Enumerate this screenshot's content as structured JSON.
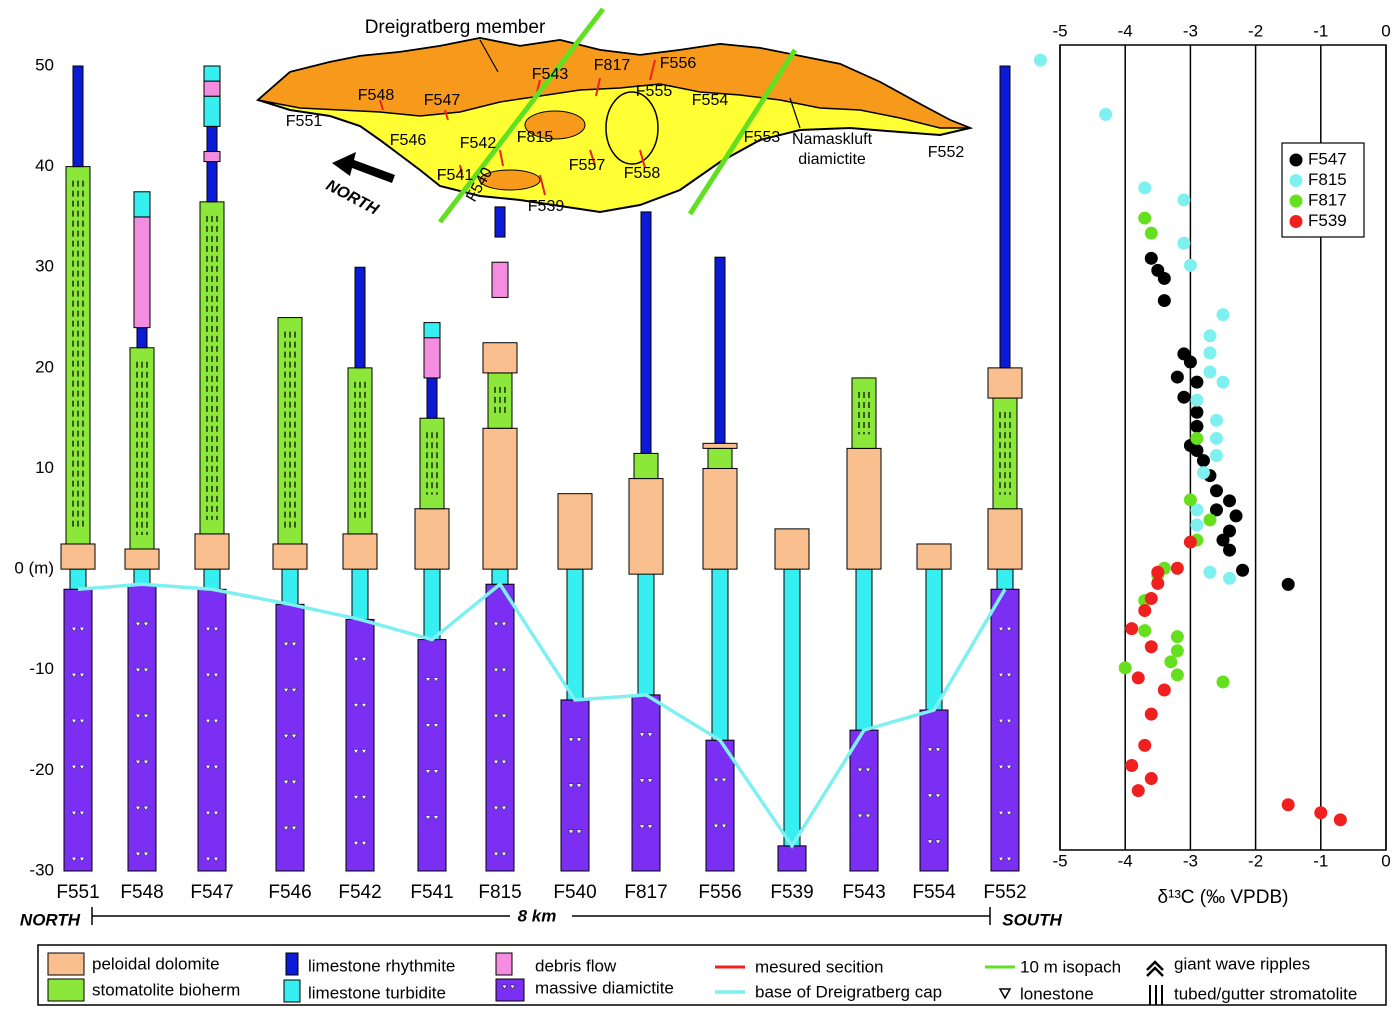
{
  "chart_data": [
    {
      "type": "strat-columns",
      "ylim": [
        -30,
        50
      ],
      "yticks": [
        -30,
        -20,
        -10,
        {
          "value": 0,
          "label": "0 (m)"
        },
        10,
        20,
        30,
        40,
        50
      ],
      "lithologies": [
        {
          "name": "peloidal dolomite",
          "color": "#f9bf8e"
        },
        {
          "name": "stomatolite bioherm",
          "color": "#8be83a"
        },
        {
          "name": "limestone rhythmite",
          "color": "#0b1ad6"
        },
        {
          "name": "limestone turbidite",
          "color": "#37eef0"
        },
        {
          "name": "debris flow",
          "color": "#f48ddf"
        },
        {
          "name": "massive diamictite",
          "color": "#7a2ff2"
        }
      ],
      "sections": [
        {
          "name": "F551",
          "units": [
            [
              -30,
              -2,
              5
            ],
            [
              -2,
              0,
              3
            ],
            [
              0,
              2.5,
              0
            ],
            [
              2.5,
              40,
              1
            ],
            [
              40,
              50,
              2
            ]
          ]
        },
        {
          "name": "F548",
          "units": [
            [
              -30,
              -1.5,
              5
            ],
            [
              -1.5,
              0,
              3
            ],
            [
              0,
              2,
              0
            ],
            [
              2,
              22,
              1
            ],
            [
              22,
              24,
              2
            ],
            [
              24,
              35,
              4
            ],
            [
              35,
              37.5,
              3
            ]
          ]
        },
        {
          "name": "F547",
          "units": [
            [
              -30,
              -2,
              5
            ],
            [
              -2,
              0,
              3
            ],
            [
              0,
              3.5,
              0
            ],
            [
              3.5,
              36.5,
              1
            ],
            [
              36.5,
              40.5,
              2
            ],
            [
              40.5,
              41.5,
              4
            ],
            [
              41.5,
              44,
              2
            ],
            [
              44,
              47,
              3
            ],
            [
              47,
              48.5,
              4
            ],
            [
              48.5,
              50,
              3
            ]
          ]
        },
        {
          "name": "F546",
          "units": [
            [
              -30,
              -3.5,
              5
            ],
            [
              -3.5,
              0,
              3
            ],
            [
              0,
              2.5,
              0
            ],
            [
              2.5,
              25,
              1
            ]
          ]
        },
        {
          "name": "F542",
          "units": [
            [
              -30,
              -5,
              5
            ],
            [
              -5,
              0,
              3
            ],
            [
              0,
              3.5,
              0
            ],
            [
              3.5,
              20,
              1
            ],
            [
              20,
              30,
              2
            ]
          ]
        },
        {
          "name": "F541",
          "units": [
            [
              -30,
              -7,
              5
            ],
            [
              -7,
              0,
              3
            ],
            [
              0,
              6,
              0
            ],
            [
              6,
              15,
              1
            ],
            [
              15,
              19,
              2
            ],
            [
              19,
              23,
              4
            ],
            [
              23,
              24.5,
              3
            ]
          ]
        },
        {
          "name": "F815",
          "units": [
            [
              -30,
              -1.5,
              5
            ],
            [
              -1.5,
              0,
              3
            ],
            [
              0,
              14,
              0
            ],
            [
              14,
              19.5,
              1
            ],
            [
              19.5,
              22.5,
              0
            ],
            [
              27,
              30.5,
              4
            ],
            [
              33,
              36,
              2
            ]
          ]
        },
        {
          "name": "F540",
          "units": [
            [
              -30,
              -13,
              5
            ],
            [
              -13,
              0,
              3
            ],
            [
              0,
              7.5,
              0
            ]
          ]
        },
        {
          "name": "F817",
          "units": [
            [
              -30,
              -12.5,
              5
            ],
            [
              -12.5,
              0,
              3
            ],
            [
              -0.5,
              9,
              0
            ],
            [
              9,
              11.5,
              1
            ],
            [
              11.5,
              35.5,
              2
            ]
          ]
        },
        {
          "name": "F556",
          "units": [
            [
              -30,
              -17,
              5
            ],
            [
              -17,
              0,
              3
            ],
            [
              0,
              10,
              0
            ],
            [
              10,
              12,
              1
            ],
            [
              12,
              12.5,
              0
            ],
            [
              12.5,
              31,
              2
            ]
          ]
        },
        {
          "name": "F539",
          "units": [
            [
              -30,
              -27.5,
              5
            ],
            [
              -27.5,
              0,
              3
            ],
            [
              0,
              4,
              0
            ]
          ]
        },
        {
          "name": "F543",
          "units": [
            [
              -30,
              -16,
              5
            ],
            [
              -16,
              0,
              3
            ],
            [
              0,
              12,
              0
            ],
            [
              12,
              19,
              1
            ]
          ]
        },
        {
          "name": "F554",
          "units": [
            [
              -30,
              -14,
              5
            ],
            [
              -14,
              0,
              3
            ],
            [
              0,
              2.5,
              0
            ]
          ]
        },
        {
          "name": "F552",
          "units": [
            [
              -30,
              -2,
              5
            ],
            [
              -2,
              0,
              3
            ],
            [
              0,
              6,
              0
            ],
            [
              6,
              17,
              1
            ],
            [
              17,
              20,
              0
            ],
            [
              20,
              50,
              2
            ]
          ]
        }
      ],
      "base_line": {
        "name": "base of Dreigratberg cap",
        "color": "#7ff0f0",
        "values": [
          -2,
          -1.5,
          -2,
          -3.5,
          -5,
          -7,
          -1.5,
          -13,
          -12.5,
          -17,
          -27.5,
          -16,
          -14,
          -2
        ]
      },
      "symbols": [
        {
          "name": "mesured secition",
          "color": "#f02020"
        },
        {
          "name": "10 m isopach",
          "color": "#60e020"
        },
        {
          "name": "giant wave ripples"
        },
        {
          "name": "lonestone"
        },
        {
          "name": "tubed/gutter stromatolite"
        }
      ],
      "annotations": [
        "NORTH",
        "8 km",
        "SOUTH"
      ]
    },
    {
      "type": "scatter",
      "xlim": [
        -5,
        0
      ],
      "xticks": [
        -5,
        -4,
        -3,
        -2,
        -1,
        0
      ],
      "ylim": [
        -28,
        52
      ],
      "xlabel": "δ¹³C (‰ VPDB)",
      "grid": true,
      "legend": "upper right",
      "series": [
        {
          "name": "F547",
          "color": "#000000",
          "x": [
            -3.6,
            -3.5,
            -3.4,
            -3.4,
            -3.1,
            -3.0,
            -3.2,
            -2.9,
            -3.1,
            -2.9,
            -2.9,
            -3.0,
            -2.8,
            -2.7,
            -2.6,
            -2.4,
            -2.3,
            -2.4,
            -2.4,
            -2.2,
            -1.5,
            -2.9,
            -2.6,
            -2.5
          ],
          "y": [
            30.8,
            29.6,
            28.8,
            26.6,
            21.3,
            20.5,
            19.0,
            18.5,
            17.0,
            15.5,
            14.1,
            12.2,
            10.7,
            9.2,
            7.7,
            6.7,
            5.2,
            3.7,
            1.8,
            -0.2,
            -1.6,
            11.7,
            5.8,
            2.8
          ]
        },
        {
          "name": "F815",
          "color": "#7ff0f0",
          "x": [
            -5.3,
            -4.3,
            -3.7,
            -3.1,
            -3.1,
            -3.0,
            -2.5,
            -2.7,
            -2.7,
            -2.7,
            -2.5,
            -2.9,
            -2.6,
            -2.6,
            -2.6,
            -2.8,
            -2.9,
            -2.9,
            -2.7,
            -2.4
          ],
          "y": [
            50.5,
            45.1,
            37.8,
            36.6,
            32.3,
            30.1,
            25.2,
            23.1,
            21.4,
            19.5,
            18.5,
            16.7,
            14.7,
            12.9,
            11.2,
            9.5,
            5.8,
            4.3,
            -0.4,
            -1.0
          ]
        },
        {
          "name": "F817",
          "color": "#66e01e",
          "x": [
            -3.7,
            -3.6,
            -2.9,
            -3.0,
            -2.7,
            -2.9,
            -3.4,
            -3.5,
            -3.7,
            -3.7,
            -3.2,
            -3.2,
            -3.3,
            -3.2,
            -4.0,
            -2.5
          ],
          "y": [
            34.8,
            33.3,
            12.9,
            6.8,
            4.8,
            2.8,
            0,
            -0.7,
            -3.2,
            -6.2,
            -6.8,
            -8.2,
            -9.3,
            -10.6,
            -9.9,
            -11.3
          ]
        },
        {
          "name": "F539",
          "color": "#f02020",
          "x": [
            -3.0,
            -3.2,
            -3.5,
            -3.5,
            -3.6,
            -3.7,
            -3.9,
            -3.6,
            -3.8,
            -3.4,
            -3.6,
            -3.7,
            -3.9,
            -3.6,
            -3.8,
            -1.5,
            -1.0,
            -0.7
          ],
          "y": [
            2.6,
            0,
            -0.4,
            -1.5,
            -3.0,
            -4.2,
            -6.0,
            -7.8,
            -10.9,
            -12.1,
            -14.5,
            -17.6,
            -19.6,
            -20.9,
            -22.1,
            -23.5,
            -24.3,
            -25.0
          ]
        }
      ]
    }
  ],
  "map": {
    "title": "Dreigratberg member",
    "labels": [
      "F543",
      "F817",
      "F556",
      "F548",
      "F547",
      "F555",
      "F554",
      "F551",
      "F546",
      "F542",
      "F815",
      "F553",
      "Namaskluft",
      "diamictite",
      "F552",
      "F541",
      "F557",
      "F558",
      "F540",
      "F539",
      "NORTH"
    ]
  }
}
